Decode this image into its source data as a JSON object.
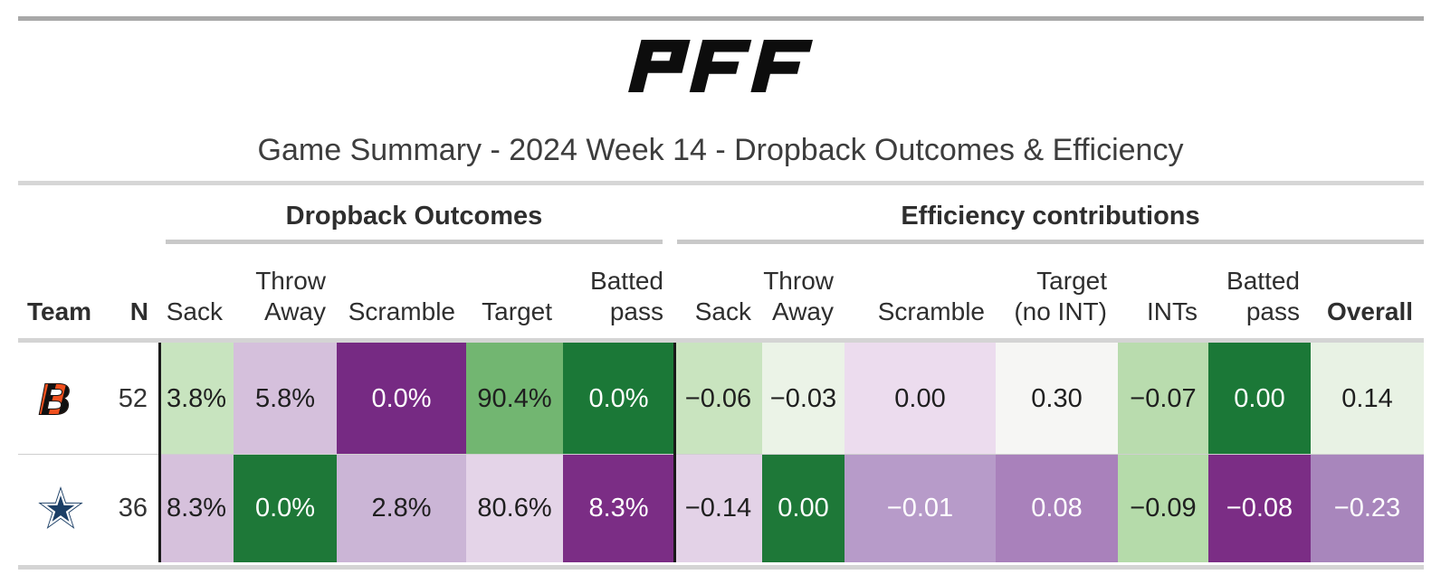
{
  "brand": {
    "logo_text": "PFF"
  },
  "page_title": "Game Summary - 2024 Week 14 - Dropback Outcomes & Efficiency",
  "table": {
    "groups": [
      {
        "id": "dropback",
        "label": "Dropback Outcomes"
      },
      {
        "id": "efficiency",
        "label": "Efficiency contributions"
      }
    ],
    "columns": [
      {
        "id": "team",
        "line1": "",
        "line2": "Team",
        "bold": true
      },
      {
        "id": "n",
        "line1": "",
        "line2": "N",
        "bold": true
      },
      {
        "id": "db_sack",
        "line1": "",
        "line2": "Sack",
        "bold": false
      },
      {
        "id": "db_throw_away",
        "line1": "Throw",
        "line2": "Away",
        "bold": false
      },
      {
        "id": "db_scramble",
        "line1": "",
        "line2": "Scramble",
        "bold": false
      },
      {
        "id": "db_target",
        "line1": "",
        "line2": "Target",
        "bold": false
      },
      {
        "id": "db_batted_pass",
        "line1": "Batted",
        "line2": "pass",
        "bold": false
      },
      {
        "id": "eff_sack",
        "line1": "",
        "line2": "Sack",
        "bold": false
      },
      {
        "id": "eff_throw_away",
        "line1": "Throw",
        "line2": "Away",
        "bold": false
      },
      {
        "id": "eff_scramble",
        "line1": "",
        "line2": "Scramble",
        "bold": false
      },
      {
        "id": "eff_target_no_int",
        "line1": "Target",
        "line2": "(no INT)",
        "bold": false
      },
      {
        "id": "eff_ints",
        "line1": "",
        "line2": "INTs",
        "bold": false
      },
      {
        "id": "eff_batted_pass",
        "line1": "Batted",
        "line2": "pass",
        "bold": false
      },
      {
        "id": "overall",
        "line1": "",
        "line2": "Overall",
        "bold": true
      }
    ],
    "rows": [
      {
        "team": "Cincinnati Bengals",
        "n": "52",
        "cells": [
          {
            "value": "3.8%",
            "bg": "#c8e4bf",
            "fg": "#1f1f1f"
          },
          {
            "value": "5.8%",
            "bg": "#d5c0dc",
            "fg": "#1f1f1f"
          },
          {
            "value": "0.0%",
            "bg": "#762a83",
            "fg": "#ffffff"
          },
          {
            "value": "90.4%",
            "bg": "#72b671",
            "fg": "#1f1f1f"
          },
          {
            "value": "0.0%",
            "bg": "#1b7837",
            "fg": "#ffffff"
          },
          {
            "value": "−0.06",
            "bg": "#c9e4bf",
            "fg": "#1f1f1f"
          },
          {
            "value": "−0.03",
            "bg": "#ebf3e7",
            "fg": "#1f1f1f"
          },
          {
            "value": "0.00",
            "bg": "#ecdcee",
            "fg": "#1f1f1f"
          },
          {
            "value": "0.30",
            "bg": "#f6f6f4",
            "fg": "#1f1f1f"
          },
          {
            "value": "−0.07",
            "bg": "#b9dcae",
            "fg": "#1f1f1f"
          },
          {
            "value": "0.00",
            "bg": "#1b7837",
            "fg": "#ffffff"
          },
          {
            "value": "0.14",
            "bg": "#e8f2e4",
            "fg": "#1f1f1f"
          }
        ]
      },
      {
        "team": "Dallas Cowboys",
        "n": "36",
        "cells": [
          {
            "value": "8.3%",
            "bg": "#d6c1dc",
            "fg": "#1f1f1f"
          },
          {
            "value": "0.0%",
            "bg": "#1e7838",
            "fg": "#ffffff"
          },
          {
            "value": "2.8%",
            "bg": "#cbb5d6",
            "fg": "#1f1f1f"
          },
          {
            "value": "80.6%",
            "bg": "#e4d4e8",
            "fg": "#1f1f1f"
          },
          {
            "value": "8.3%",
            "bg": "#7b2d85",
            "fg": "#ffffff"
          },
          {
            "value": "−0.14",
            "bg": "#e3d2e7",
            "fg": "#1f1f1f"
          },
          {
            "value": "0.00",
            "bg": "#1e7838",
            "fg": "#ffffff"
          },
          {
            "value": "−0.01",
            "bg": "#b79bc9",
            "fg": "#ffffff"
          },
          {
            "value": "0.08",
            "bg": "#a981bb",
            "fg": "#ffffff"
          },
          {
            "value": "−0.09",
            "bg": "#b5dbaa",
            "fg": "#1f1f1f"
          },
          {
            "value": "−0.08",
            "bg": "#7b2d85",
            "fg": "#ffffff"
          },
          {
            "value": "−0.23",
            "bg": "#a886bc",
            "fg": "#ffffff"
          }
        ]
      }
    ]
  }
}
